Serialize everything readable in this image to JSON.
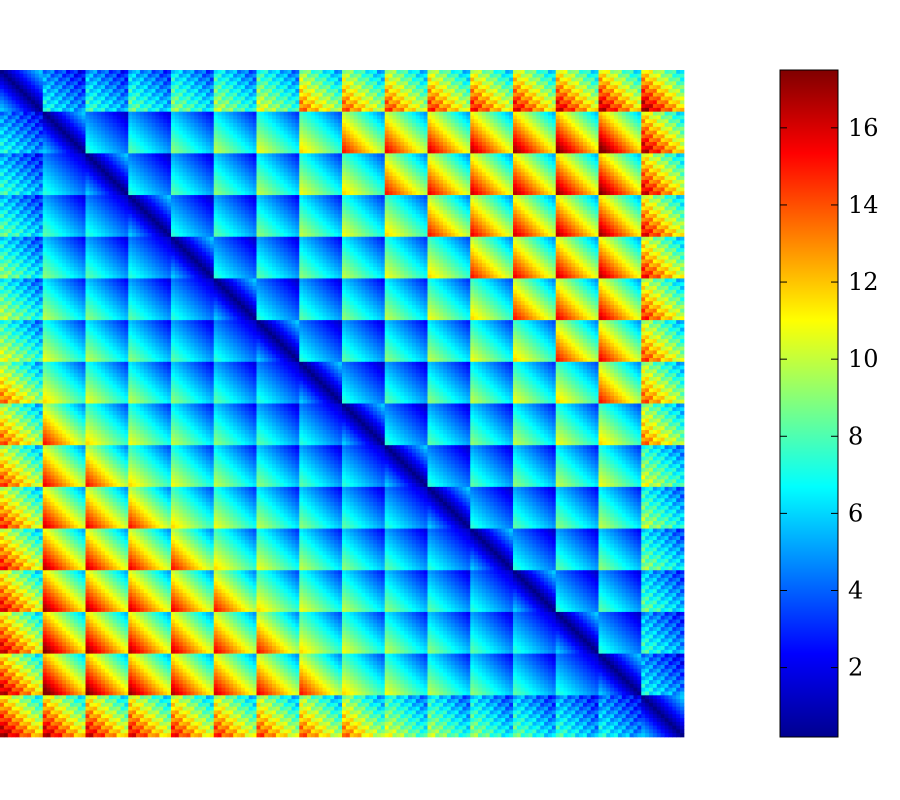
{
  "chart_data": {
    "type": "heatmap",
    "title": "",
    "xlabel": "",
    "ylabel": "",
    "colormap": "jet",
    "color_range": [
      0.2,
      17.5
    ],
    "colorbar_ticks": [
      2,
      4,
      6,
      8,
      10,
      12,
      14,
      16
    ],
    "colorbar_tick_labels": [
      "2",
      "4",
      "6",
      "8",
      "10",
      "12",
      "14",
      "16"
    ],
    "legend_position": "right",
    "pattern": {
      "blocks_per_side": 16,
      "cells_per_block": 11,
      "description_values": {
        "diagonal_min": 0.3,
        "near_diagonal_block_range": [
          1,
          7
        ],
        "far_block_range": [
          5,
          17
        ]
      }
    }
  }
}
